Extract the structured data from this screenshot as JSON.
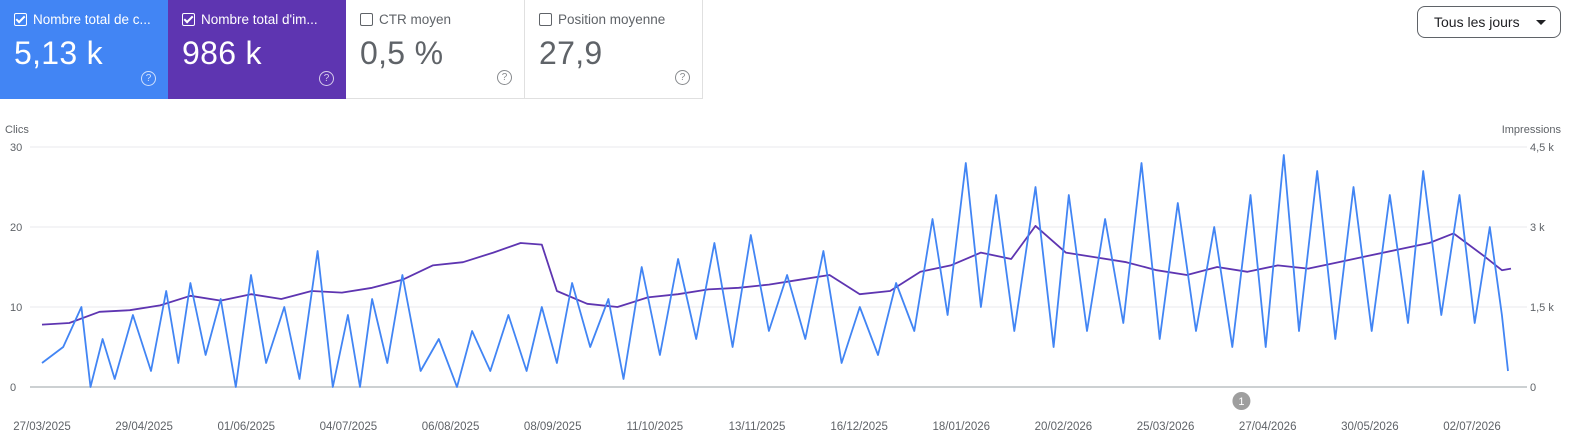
{
  "cards": {
    "clicks": {
      "label": "Nombre total de c...",
      "value": "5,13 k",
      "checked": true
    },
    "impressions": {
      "label": "Nombre total d'im...",
      "value": "986 k",
      "checked": true
    },
    "ctr": {
      "label": "CTR moyen",
      "value": "0,5 %",
      "checked": false
    },
    "position": {
      "label": "Position moyenne",
      "value": "27,9",
      "checked": false
    }
  },
  "period": {
    "label": "Tous les jours"
  },
  "annotation_marker": {
    "label": "1"
  },
  "colors": {
    "clicks": "#4285f4",
    "impressions": "#5e35b1",
    "grid": "#e8eaed",
    "axis_text": "#5f6368"
  },
  "icons": {
    "help": "help-circle-icon",
    "checkbox": "checkbox-icon",
    "dropdown": "caret-down-icon"
  },
  "chart_data": {
    "type": "line",
    "left_axis": {
      "label": "Clics",
      "ticks": [
        "0",
        "10",
        "20",
        "30"
      ],
      "range": [
        0,
        30
      ]
    },
    "right_axis": {
      "label": "Impressions",
      "ticks": [
        "0",
        "1,5 k",
        "3 k",
        "4,5 k"
      ],
      "range": [
        0,
        4500
      ]
    },
    "x_tick_labels": [
      "27/03/2025",
      "29/04/2025",
      "01/06/2025",
      "04/07/2025",
      "06/08/2025",
      "08/09/2025",
      "11/10/2025",
      "13/11/2025",
      "16/12/2025",
      "18/01/2026",
      "20/02/2026",
      "25/03/2026",
      "27/04/2026",
      "30/05/2026",
      "02/07/2026"
    ],
    "x_range": [
      "2025-03-27",
      "2026-07-25"
    ],
    "grid": true,
    "series": [
      {
        "name": "Clics",
        "axis": "left",
        "points": [
          [
            "2025-03-27",
            3
          ],
          [
            "2025-04-03",
            5
          ],
          [
            "2025-04-09",
            10
          ],
          [
            "2025-04-12",
            0
          ],
          [
            "2025-04-16",
            6
          ],
          [
            "2025-04-20",
            1
          ],
          [
            "2025-04-26",
            9
          ],
          [
            "2025-05-02",
            2
          ],
          [
            "2025-05-07",
            12
          ],
          [
            "2025-05-11",
            3
          ],
          [
            "2025-05-15",
            13
          ],
          [
            "2025-05-20",
            4
          ],
          [
            "2025-05-25",
            11
          ],
          [
            "2025-05-30",
            0
          ],
          [
            "2025-06-04",
            14
          ],
          [
            "2025-06-09",
            3
          ],
          [
            "2025-06-15",
            10
          ],
          [
            "2025-06-20",
            1
          ],
          [
            "2025-06-26",
            17
          ],
          [
            "2025-07-01",
            0
          ],
          [
            "2025-07-06",
            9
          ],
          [
            "2025-07-10",
            0
          ],
          [
            "2025-07-14",
            11
          ],
          [
            "2025-07-19",
            3
          ],
          [
            "2025-07-24",
            14
          ],
          [
            "2025-07-30",
            2
          ],
          [
            "2025-08-05",
            6
          ],
          [
            "2025-08-11",
            0
          ],
          [
            "2025-08-16",
            7
          ],
          [
            "2025-08-22",
            2
          ],
          [
            "2025-08-28",
            9
          ],
          [
            "2025-09-03",
            2
          ],
          [
            "2025-09-08",
            10
          ],
          [
            "2025-09-13",
            3
          ],
          [
            "2025-09-18",
            13
          ],
          [
            "2025-09-24",
            5
          ],
          [
            "2025-09-30",
            11
          ],
          [
            "2025-10-05",
            1
          ],
          [
            "2025-10-11",
            15
          ],
          [
            "2025-10-17",
            4
          ],
          [
            "2025-10-23",
            16
          ],
          [
            "2025-10-29",
            6
          ],
          [
            "2025-11-04",
            18
          ],
          [
            "2025-11-10",
            5
          ],
          [
            "2025-11-16",
            19
          ],
          [
            "2025-11-22",
            7
          ],
          [
            "2025-11-28",
            14
          ],
          [
            "2025-12-04",
            6
          ],
          [
            "2025-12-10",
            17
          ],
          [
            "2025-12-16",
            3
          ],
          [
            "2025-12-22",
            10
          ],
          [
            "2025-12-28",
            4
          ],
          [
            "2026-01-03",
            13
          ],
          [
            "2026-01-09",
            7
          ],
          [
            "2026-01-15",
            21
          ],
          [
            "2026-01-20",
            9
          ],
          [
            "2026-01-26",
            28
          ],
          [
            "2026-01-31",
            10
          ],
          [
            "2026-02-05",
            24
          ],
          [
            "2026-02-11",
            7
          ],
          [
            "2026-02-18",
            25
          ],
          [
            "2026-02-24",
            5
          ],
          [
            "2026-03-01",
            24
          ],
          [
            "2026-03-07",
            7
          ],
          [
            "2026-03-13",
            21
          ],
          [
            "2026-03-19",
            8
          ],
          [
            "2026-03-25",
            28
          ],
          [
            "2026-03-31",
            6
          ],
          [
            "2026-04-06",
            23
          ],
          [
            "2026-04-12",
            7
          ],
          [
            "2026-04-18",
            20
          ],
          [
            "2026-04-24",
            5
          ],
          [
            "2026-04-30",
            24
          ],
          [
            "2026-05-05",
            5
          ],
          [
            "2026-05-11",
            29
          ],
          [
            "2026-05-16",
            7
          ],
          [
            "2026-05-22",
            27
          ],
          [
            "2026-05-28",
            6
          ],
          [
            "2026-06-03",
            25
          ],
          [
            "2026-06-09",
            7
          ],
          [
            "2026-06-15",
            24
          ],
          [
            "2026-06-21",
            8
          ],
          [
            "2026-06-26",
            27
          ],
          [
            "2026-07-02",
            9
          ],
          [
            "2026-07-08",
            24
          ],
          [
            "2026-07-13",
            8
          ],
          [
            "2026-07-18",
            20
          ],
          [
            "2026-07-22",
            9
          ],
          [
            "2026-07-24",
            2
          ]
        ]
      },
      {
        "name": "Impressions",
        "axis": "right",
        "points": [
          [
            "2025-03-27",
            1170
          ],
          [
            "2025-04-05",
            1200
          ],
          [
            "2025-04-15",
            1410
          ],
          [
            "2025-04-25",
            1440
          ],
          [
            "2025-05-05",
            1530
          ],
          [
            "2025-05-15",
            1710
          ],
          [
            "2025-05-25",
            1620
          ],
          [
            "2025-06-04",
            1740
          ],
          [
            "2025-06-14",
            1650
          ],
          [
            "2025-06-24",
            1800
          ],
          [
            "2025-07-04",
            1770
          ],
          [
            "2025-07-14",
            1860
          ],
          [
            "2025-07-24",
            2010
          ],
          [
            "2025-08-03",
            2280
          ],
          [
            "2025-08-13",
            2340
          ],
          [
            "2025-08-23",
            2520
          ],
          [
            "2025-09-01",
            2700
          ],
          [
            "2025-09-08",
            2670
          ],
          [
            "2025-09-13",
            1800
          ],
          [
            "2025-09-23",
            1560
          ],
          [
            "2025-10-03",
            1500
          ],
          [
            "2025-10-13",
            1680
          ],
          [
            "2025-10-23",
            1740
          ],
          [
            "2025-11-02",
            1830
          ],
          [
            "2025-11-12",
            1860
          ],
          [
            "2025-11-22",
            1920
          ],
          [
            "2025-12-02",
            2010
          ],
          [
            "2025-12-12",
            2100
          ],
          [
            "2025-12-22",
            1740
          ],
          [
            "2026-01-01",
            1800
          ],
          [
            "2026-01-11",
            2160
          ],
          [
            "2026-01-21",
            2280
          ],
          [
            "2026-01-31",
            2520
          ],
          [
            "2026-02-10",
            2400
          ],
          [
            "2026-02-18",
            3020
          ],
          [
            "2026-02-28",
            2520
          ],
          [
            "2026-03-10",
            2430
          ],
          [
            "2026-03-20",
            2340
          ],
          [
            "2026-03-30",
            2190
          ],
          [
            "2026-04-09",
            2100
          ],
          [
            "2026-04-19",
            2250
          ],
          [
            "2026-04-29",
            2160
          ],
          [
            "2026-05-09",
            2280
          ],
          [
            "2026-05-19",
            2220
          ],
          [
            "2026-05-29",
            2340
          ],
          [
            "2026-06-08",
            2460
          ],
          [
            "2026-06-18",
            2580
          ],
          [
            "2026-06-28",
            2700
          ],
          [
            "2026-07-06",
            2880
          ],
          [
            "2026-07-16",
            2460
          ],
          [
            "2026-07-22",
            2190
          ],
          [
            "2026-07-25",
            2220
          ]
        ]
      }
    ],
    "annotations": [
      {
        "date": "2026-04-27",
        "label": "1"
      }
    ]
  }
}
